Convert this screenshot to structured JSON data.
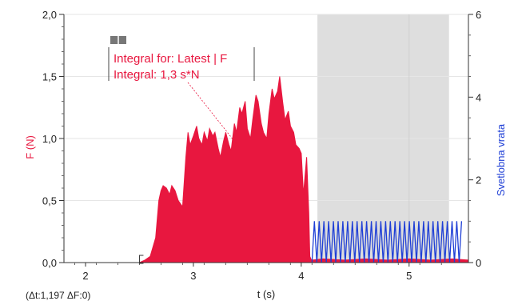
{
  "chart_data": {
    "type": "area",
    "xlabel": "t (s)",
    "ylabel": "F (N)",
    "y2label": "Svetlobna vrata",
    "xlim": [
      1.8,
      5.55
    ],
    "ylim": [
      0,
      2.0
    ],
    "y2lim": [
      0,
      6
    ],
    "x_ticks": [
      {
        "value": 2,
        "label": "2"
      },
      {
        "value": 3,
        "label": "3"
      },
      {
        "value": 4,
        "label": "4"
      },
      {
        "value": 5,
        "label": "5"
      }
    ],
    "y_ticks": [
      {
        "value": 0,
        "label": "0,0"
      },
      {
        "value": 0.5,
        "label": "0,5"
      },
      {
        "value": 1.0,
        "label": "1,0"
      },
      {
        "value": 1.5,
        "label": "1,5"
      },
      {
        "value": 2.0,
        "label": "2,0"
      }
    ],
    "y2_ticks": [
      {
        "value": 0,
        "label": "0"
      },
      {
        "value": 2,
        "label": "2"
      },
      {
        "value": 4,
        "label": "4"
      },
      {
        "value": 6,
        "label": "6"
      }
    ],
    "series": [
      {
        "name": "F",
        "color": "#e8173f",
        "x": [
          1.8,
          2.2,
          2.4,
          2.5,
          2.55,
          2.6,
          2.65,
          2.68,
          2.7,
          2.72,
          2.75,
          2.78,
          2.8,
          2.83,
          2.86,
          2.9,
          2.93,
          2.95,
          2.97,
          3.0,
          3.03,
          3.05,
          3.08,
          3.1,
          3.13,
          3.15,
          3.18,
          3.2,
          3.23,
          3.25,
          3.28,
          3.3,
          3.33,
          3.35,
          3.38,
          3.4,
          3.43,
          3.45,
          3.48,
          3.5,
          3.53,
          3.55,
          3.58,
          3.6,
          3.63,
          3.65,
          3.68,
          3.7,
          3.73,
          3.75,
          3.78,
          3.8,
          3.83,
          3.85,
          3.88,
          3.9,
          3.93,
          3.95,
          3.98,
          4.0,
          4.02,
          4.05,
          4.07,
          4.08,
          4.1,
          4.2,
          4.4,
          4.6,
          4.8,
          5.0,
          5.2,
          5.4,
          5.55
        ],
        "y": [
          0.0,
          0.0,
          0.0,
          0.0,
          0.02,
          0.05,
          0.2,
          0.5,
          0.58,
          0.62,
          0.6,
          0.55,
          0.62,
          0.58,
          0.5,
          0.45,
          0.85,
          1.05,
          0.95,
          1.02,
          1.1,
          1.0,
          0.95,
          1.05,
          0.98,
          1.08,
          1.02,
          1.05,
          0.92,
          0.85,
          0.98,
          1.05,
          0.95,
          0.9,
          1.12,
          1.05,
          1.25,
          1.2,
          1.3,
          1.08,
          1.0,
          1.15,
          1.35,
          1.3,
          1.12,
          1.05,
          1.0,
          1.2,
          1.4,
          1.32,
          1.38,
          1.5,
          1.28,
          1.15,
          1.22,
          1.1,
          1.05,
          0.95,
          0.92,
          0.88,
          0.55,
          0.85,
          0.4,
          0.05,
          0.01,
          0.02,
          0.01,
          0.02,
          0.01,
          0.02,
          0.01,
          0.02,
          0.01
        ]
      },
      {
        "name": "Svetlobna vrata",
        "color": "#1f3fd6",
        "x_start": 4.1,
        "x_end": 5.5,
        "period": 0.044,
        "min": 0,
        "max": 1.0
      }
    ],
    "shaded_region": {
      "x_start": 4.15,
      "x_end": 5.37,
      "color": "#dedede"
    },
    "selection_start_x": 2.5
  },
  "annotation": {
    "line1": "Integral for: Latest | F",
    "line2": "Integral: 1,3 s*N"
  },
  "readout": "(Δt:1,197 ΔF:0)"
}
